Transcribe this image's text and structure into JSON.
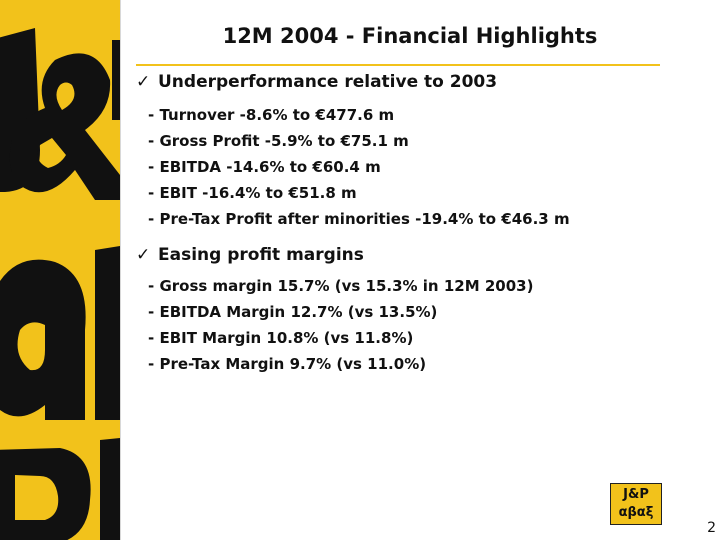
{
  "title": "12M 2004 - Financial Highlights",
  "sections": [
    {
      "heading": "Underperformance relative to 2003",
      "items": [
        "- Turnover -8.6% to €477.6 m",
        "- Gross Profit -5.9% to €75.1 m",
        "- EBITDA -14.6% to €60.4 m",
        "- EBIT -16.4% to €51.8 m",
        "- Pre-Tax Profit after minorities -19.4% to €46.3 m"
      ]
    },
    {
      "heading": "Easing profit margins",
      "items": [
        "- Gross margin 15.7% (vs  15.3% in 12M 2003)",
        "- EBITDA Margin 12.7% (vs 13.5%)",
        "- EBIT Margin 10.8% (vs 11.8%)",
        "- Pre-Tax Margin 9.7% (vs 11.0%)"
      ]
    }
  ],
  "check_mark": "✓",
  "logo": {
    "line1": "J&P",
    "line2": "αβαξ"
  },
  "page_number": "2",
  "colors": {
    "brand_yellow": "#f2c21b",
    "text": "#111111"
  }
}
